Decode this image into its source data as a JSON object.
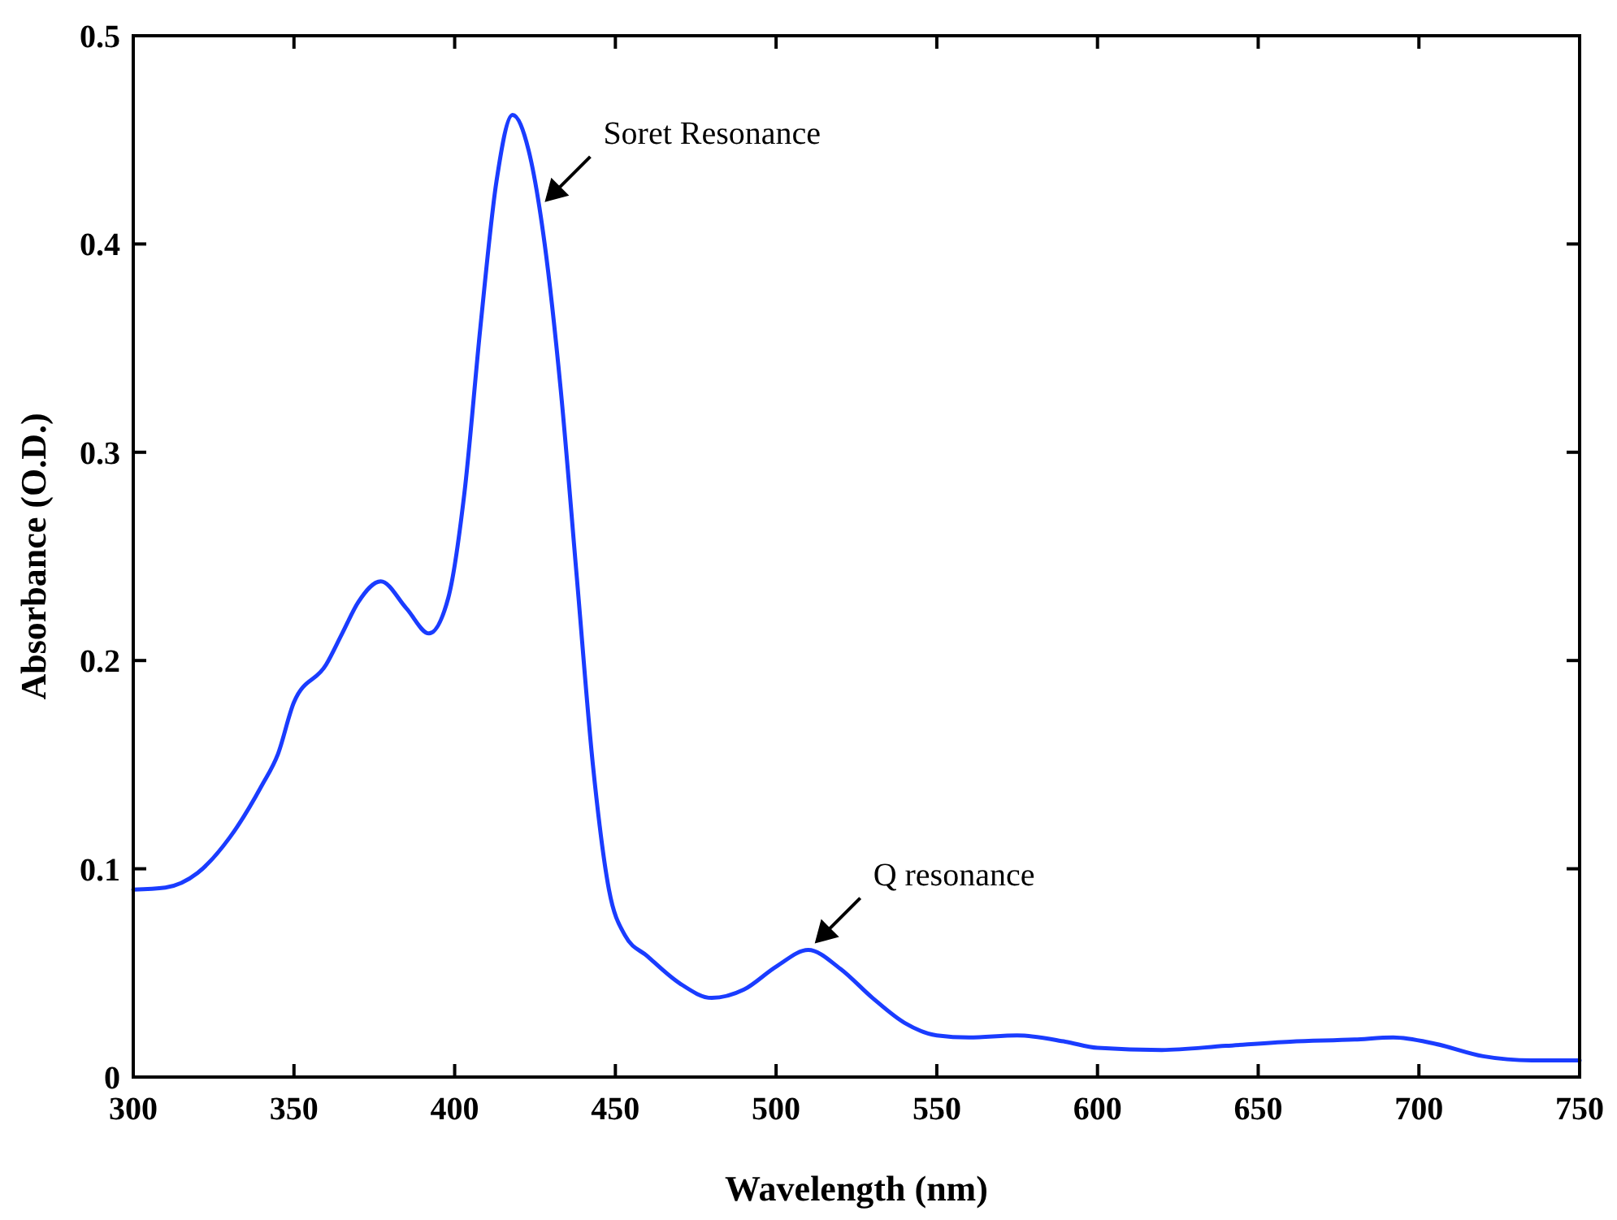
{
  "chart_data": {
    "type": "line",
    "xlabel": "Wavelength (nm)",
    "ylabel": "Absorbance (O.D.)",
    "xlim": [
      300,
      750
    ],
    "xticks": [
      300,
      350,
      400,
      450,
      500,
      550,
      600,
      650,
      700,
      750
    ],
    "ylim": [
      0,
      0.5
    ],
    "yticks": [
      0,
      0.1,
      0.2,
      0.3,
      0.4,
      0.5
    ],
    "grid": false,
    "marker": "none",
    "line_style": "solid",
    "series": [
      {
        "color": "#1a3cff",
        "x": [
          300,
          310,
          320,
          330,
          340,
          345,
          350,
          360,
          365,
          370,
          377,
          385,
          392,
          398,
          403,
          408,
          413,
          418,
          423,
          428,
          433,
          438,
          443,
          448,
          453,
          460,
          470,
          480,
          490,
          500,
          510,
          520,
          530,
          540,
          550,
          560,
          575,
          590,
          600,
          620,
          640,
          660,
          680,
          692,
          705,
          720,
          735,
          750
        ],
        "values": [
          0.09,
          0.091,
          0.098,
          0.115,
          0.14,
          0.155,
          0.18,
          0.198,
          0.213,
          0.228,
          0.238,
          0.225,
          0.213,
          0.23,
          0.28,
          0.36,
          0.43,
          0.462,
          0.445,
          0.4,
          0.33,
          0.24,
          0.15,
          0.09,
          0.068,
          0.058,
          0.045,
          0.038,
          0.042,
          0.053,
          0.061,
          0.052,
          0.038,
          0.026,
          0.02,
          0.019,
          0.02,
          0.017,
          0.014,
          0.013,
          0.015,
          0.017,
          0.018,
          0.019,
          0.016,
          0.01,
          0.008,
          0.008
        ]
      }
    ],
    "annotations": [
      {
        "text": "Soret Resonance",
        "x": 426,
        "y": 0.417
      },
      {
        "text": "Q resonance",
        "x": 510,
        "y": 0.061
      }
    ]
  }
}
